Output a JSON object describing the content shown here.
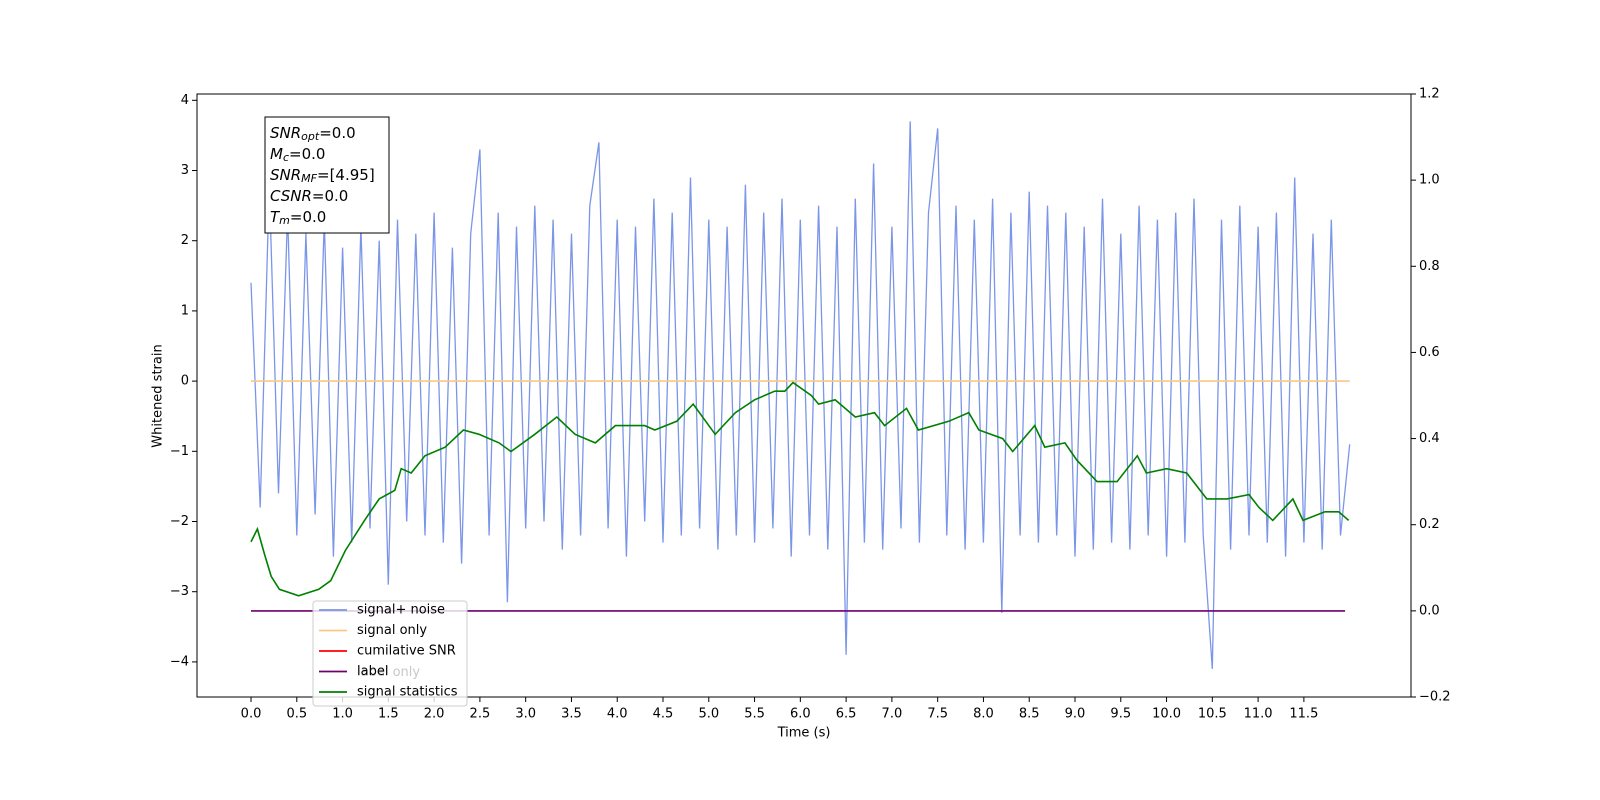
{
  "chart_data": {
    "type": "line",
    "xlabel": "Time (s)",
    "ylabel": "Whitened strain",
    "xlim": [
      -0.59,
      12.67
    ],
    "ylim": [
      -4.5,
      4.09
    ],
    "y2lim": [
      -0.2,
      1.2
    ],
    "xticks": [
      {
        "value": 0,
        "label": "0.0"
      },
      0.5,
      {
        "value": 1,
        "label": "1.0"
      },
      1.5,
      {
        "value": 2,
        "label": "2.0"
      },
      2.5,
      {
        "value": 3,
        "label": "3.0"
      },
      3.5,
      {
        "value": 4,
        "label": "4.0"
      },
      4.5,
      {
        "value": 5,
        "label": "5.0"
      },
      5.5,
      {
        "value": 6,
        "label": "6.0"
      },
      6.5,
      {
        "value": 7,
        "label": "7.0"
      },
      7.5,
      {
        "value": 8,
        "label": "8.0"
      },
      8.5,
      {
        "value": 9,
        "label": "9.0"
      },
      9.5,
      {
        "value": 10,
        "label": "10.0"
      },
      10.5,
      {
        "value": 11,
        "label": "11.0"
      },
      11.5
    ],
    "yticks": [
      {
        "value": -4,
        "label": "−4"
      },
      {
        "value": -3,
        "label": "−3"
      },
      {
        "value": -2,
        "label": "−2"
      },
      {
        "value": -1,
        "label": "−1"
      },
      0,
      1,
      2,
      3,
      4
    ],
    "y2ticks": [
      {
        "value": -0.2,
        "label": "−0.2"
      },
      {
        "value": 0,
        "label": "0.0"
      },
      0.2,
      0.4,
      0.6,
      0.8,
      {
        "value": 1,
        "label": "1.0"
      },
      1.2
    ],
    "legend_loc": "lower left",
    "legend_ghost_text": "label only",
    "textbox": [
      {
        "base": "SNR",
        "sub": "opt",
        "rest": "=0.0"
      },
      {
        "base": "M",
        "sub": "c",
        "rest": "=0.0"
      },
      {
        "base": "SNR",
        "sub": "MF",
        "rest": "=[4.95]"
      },
      {
        "base": "CSNR",
        "sub": "",
        "rest": "=0.0"
      },
      {
        "base": "T",
        "sub": "m",
        "rest": "=0.0"
      }
    ],
    "series": [
      {
        "name": "signal+ noise",
        "color": "#7b96e8",
        "x": [
          0.0,
          0.1,
          0.2,
          0.3,
          0.4,
          0.5,
          0.6,
          0.7,
          0.8,
          0.9,
          1.0,
          1.1,
          1.2,
          1.3,
          1.4,
          1.5,
          1.6,
          1.7,
          1.8,
          1.9,
          2.0,
          2.1,
          2.2,
          2.3,
          2.4,
          2.5,
          2.6,
          2.7,
          2.8,
          2.9,
          3.0,
          3.1,
          3.2,
          3.3,
          3.4,
          3.5,
          3.6,
          3.7,
          3.8,
          3.9,
          4.0,
          4.1,
          4.2,
          4.3,
          4.4,
          4.5,
          4.6,
          4.7,
          4.8,
          4.9,
          5.0,
          5.1,
          5.2,
          5.3,
          5.4,
          5.5,
          5.6,
          5.7,
          5.8,
          5.9,
          6.0,
          6.1,
          6.2,
          6.3,
          6.4,
          6.5,
          6.6,
          6.7,
          6.8,
          6.9,
          7.0,
          7.1,
          7.2,
          7.3,
          7.4,
          7.5,
          7.6,
          7.7,
          7.8,
          7.9,
          8.0,
          8.1,
          8.2,
          8.3,
          8.4,
          8.5,
          8.6,
          8.7,
          8.8,
          8.9,
          9.0,
          9.1,
          9.2,
          9.3,
          9.4,
          9.5,
          9.6,
          9.7,
          9.8,
          9.9,
          10.0,
          10.1,
          10.2,
          10.3,
          10.4,
          10.5,
          10.6,
          10.7,
          10.8,
          10.9,
          11.0,
          11.1,
          11.2,
          11.3,
          11.4,
          11.5,
          11.6,
          11.7,
          11.8,
          11.9,
          12.0
        ],
        "values": [
          1.4,
          -1.8,
          2.8,
          -1.6,
          2.4,
          -2.2,
          2.1,
          -1.9,
          2.3,
          -2.5,
          1.9,
          -2.3,
          2.2,
          -2.1,
          2.0,
          -2.9,
          2.3,
          -2.0,
          2.1,
          -2.2,
          2.4,
          -2.3,
          1.9,
          -2.6,
          2.1,
          3.3,
          -2.2,
          2.4,
          -3.15,
          2.2,
          -2.1,
          2.5,
          -2.0,
          2.3,
          -2.4,
          2.1,
          -2.2,
          2.5,
          3.4,
          -2.1,
          2.3,
          -2.5,
          2.2,
          -2.0,
          2.6,
          -2.3,
          2.4,
          -2.2,
          2.9,
          -2.1,
          2.3,
          -2.4,
          2.2,
          -2.2,
          2.8,
          -2.3,
          2.4,
          -2.1,
          2.6,
          -2.5,
          2.3,
          -2.2,
          2.5,
          -2.4,
          2.2,
          -3.9,
          2.6,
          -2.3,
          3.1,
          -2.4,
          2.2,
          -2.1,
          3.7,
          -2.3,
          2.4,
          3.6,
          -2.2,
          2.5,
          -2.4,
          2.3,
          -2.3,
          2.6,
          -3.3,
          2.4,
          -2.2,
          2.7,
          -2.3,
          2.5,
          -2.2,
          2.4,
          -2.5,
          2.2,
          -2.4,
          2.6,
          -2.3,
          2.1,
          -2.4,
          2.5,
          -2.2,
          2.3,
          -2.5,
          2.4,
          -2.3,
          2.6,
          -2.2,
          -4.1,
          2.3,
          -2.4,
          2.5,
          -2.2,
          2.2,
          -2.3,
          2.4,
          -2.5,
          2.9,
          -2.3,
          2.1,
          -2.4,
          2.3,
          -2.2,
          -0.9
        ]
      },
      {
        "name": "signal only",
        "color": "#f9c784",
        "x": [
          0,
          12
        ],
        "values": [
          0,
          0
        ]
      },
      {
        "name": "cumilative SNR",
        "color": "#ff0000"
      },
      {
        "name": "label",
        "color": "#6d006d",
        "axis": "y2",
        "x": [
          0,
          11.95
        ],
        "values": [
          0,
          0
        ]
      },
      {
        "name": "signal statistics",
        "color": "#008000",
        "axis": "y2",
        "x": [
          0.0,
          0.07,
          0.15,
          0.22,
          0.31,
          0.52,
          0.74,
          0.87,
          1.03,
          1.24,
          1.4,
          1.57,
          1.64,
          1.75,
          1.9,
          2.12,
          2.32,
          2.49,
          2.71,
          2.84,
          3.1,
          3.34,
          3.54,
          3.76,
          3.98,
          4.3,
          4.41,
          4.65,
          4.83,
          5.07,
          5.29,
          5.5,
          5.72,
          5.83,
          5.92,
          6.12,
          6.2,
          6.38,
          6.6,
          6.81,
          6.92,
          7.16,
          7.29,
          7.62,
          7.84,
          7.95,
          8.21,
          8.32,
          8.56,
          8.67,
          8.89,
          9.02,
          9.24,
          9.46,
          9.68,
          9.78,
          10.0,
          10.22,
          10.44,
          10.66,
          10.9,
          11.01,
          11.16,
          11.38,
          11.49,
          11.73,
          11.88,
          11.99
        ],
        "values": [
          0.16,
          0.19,
          0.13,
          0.08,
          0.05,
          0.035,
          0.05,
          0.07,
          0.14,
          0.21,
          0.26,
          0.28,
          0.33,
          0.32,
          0.36,
          0.38,
          0.42,
          0.41,
          0.39,
          0.37,
          0.41,
          0.45,
          0.41,
          0.39,
          0.43,
          0.43,
          0.42,
          0.44,
          0.48,
          0.41,
          0.46,
          0.49,
          0.51,
          0.51,
          0.53,
          0.5,
          0.48,
          0.49,
          0.45,
          0.46,
          0.43,
          0.47,
          0.42,
          0.44,
          0.46,
          0.42,
          0.4,
          0.37,
          0.43,
          0.38,
          0.39,
          0.35,
          0.3,
          0.3,
          0.36,
          0.32,
          0.33,
          0.32,
          0.26,
          0.26,
          0.27,
          0.24,
          0.21,
          0.26,
          0.21,
          0.23,
          0.23,
          0.21
        ]
      }
    ]
  }
}
